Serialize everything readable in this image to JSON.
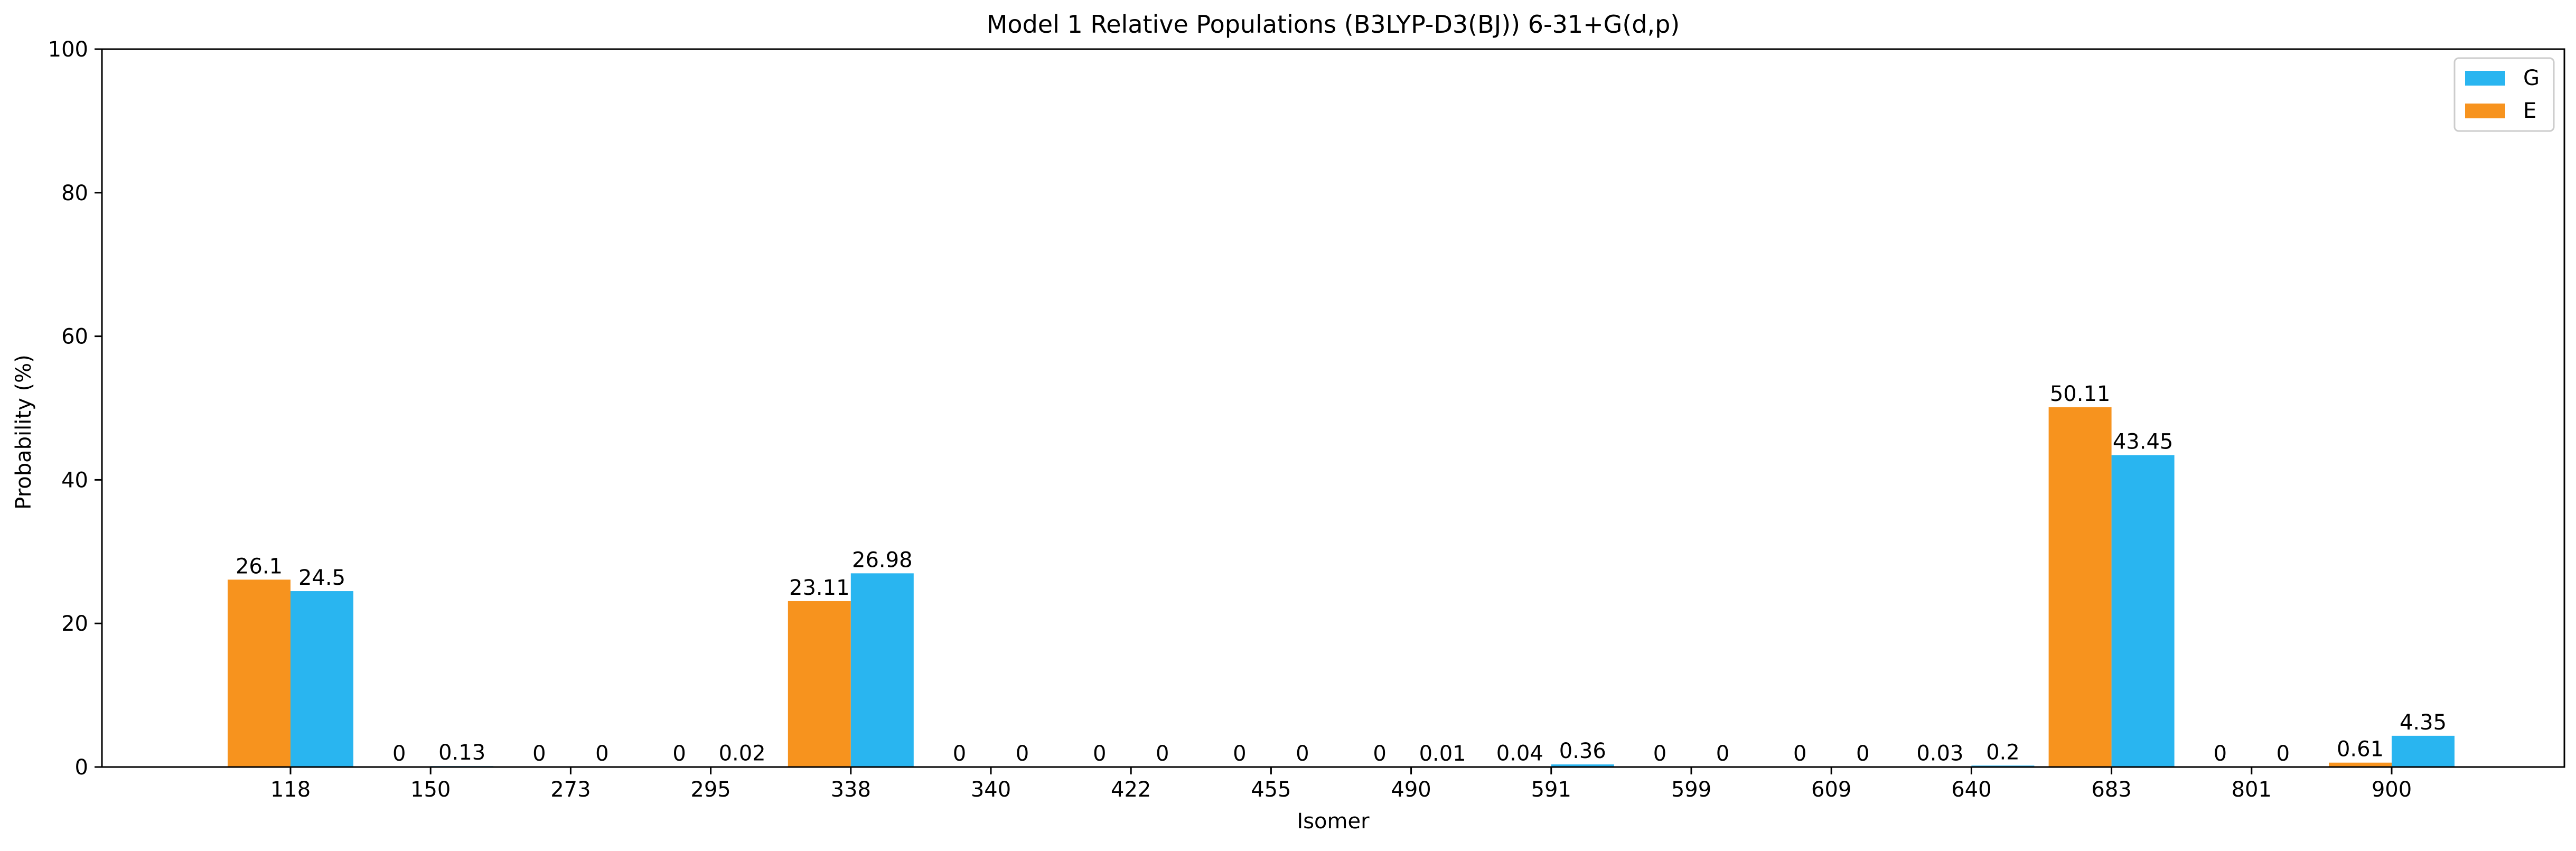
{
  "chart_data": {
    "type": "bar",
    "title": "Model 1 Relative Populations (B3LYP-D3(BJ)) 6-31+G(d,p)",
    "xlabel": "Isomer",
    "ylabel": "Probability (%)",
    "ylim": [
      0,
      100
    ],
    "yticks": [
      "0",
      "20",
      "40",
      "60",
      "80",
      "100"
    ],
    "categories": [
      "118",
      "150",
      "273",
      "295",
      "338",
      "340",
      "422",
      "455",
      "490",
      "591",
      "599",
      "609",
      "640",
      "683",
      "801",
      "900"
    ],
    "series": [
      {
        "name": "E",
        "color": "#f7931e",
        "values": [
          26.1,
          0,
          0,
          0,
          23.11,
          0,
          0,
          0,
          0,
          0.04,
          0,
          0,
          0.03,
          50.11,
          0,
          0.61
        ],
        "labels": [
          "26.1",
          "0",
          "0",
          "0",
          "23.11",
          "0",
          "0",
          "0",
          "0",
          "0.04",
          "0",
          "0",
          "0.03",
          "50.11",
          "0",
          "0.61"
        ]
      },
      {
        "name": "G",
        "color": "#29b5f0",
        "values": [
          24.5,
          0.13,
          0,
          0.02,
          26.98,
          0,
          0,
          0,
          0.01,
          0.36,
          0,
          0,
          0.2,
          43.45,
          0,
          4.35
        ],
        "labels": [
          "24.5",
          "0.13",
          "0",
          "0.02",
          "26.98",
          "0",
          "0",
          "0",
          "0.01",
          "0.36",
          "0",
          "0",
          "0.2",
          "43.45",
          "0",
          "4.35"
        ]
      }
    ],
    "legend": {
      "position": "top-right",
      "order": [
        "G",
        "E"
      ]
    },
    "grid": false
  }
}
